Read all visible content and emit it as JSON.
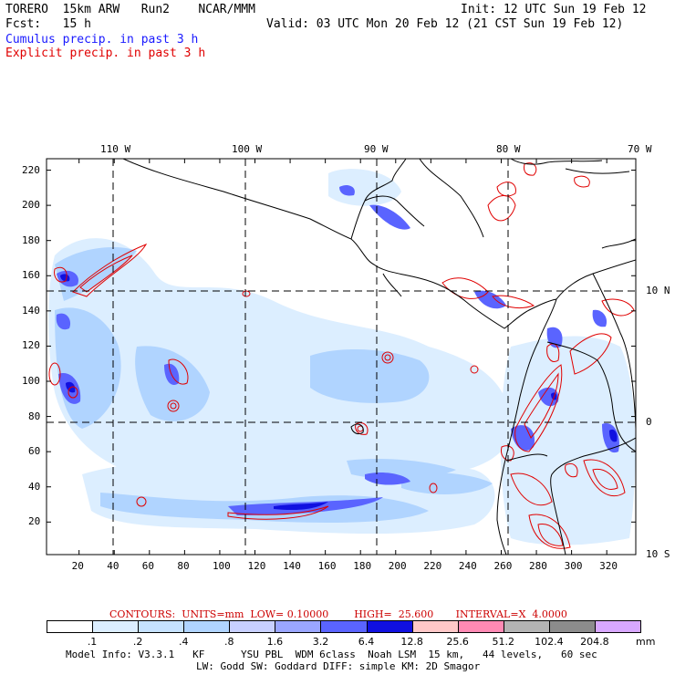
{
  "header": {
    "model": "TORERO  15km ARW   Run2    NCAR/MMM",
    "init": "Init: 12 UTC Sun 19 Feb 12",
    "fcst": "Fcst:   15 h",
    "valid": "Valid: 03 UTC Mon 20 Feb 12 (21 CST Sun 19 Feb 12)",
    "cumulus": "Cumulus precip. in past 3 h",
    "explicit": "Explicit precip. in past 3 h"
  },
  "colors": {
    "cumulus_text": "#1a1aff",
    "explicit_text": "#e00000",
    "contour": "#e00000",
    "coast": "#000000"
  },
  "axes": {
    "top_lon_labels": [
      "110 W",
      "100 W",
      "90 W",
      "80 W",
      "70 W"
    ],
    "right_lat_labels": [
      "10 N",
      "0",
      "10 S"
    ],
    "x_ticks": [
      "20",
      "40",
      "60",
      "80",
      "100",
      "120",
      "140",
      "160",
      "180",
      "200",
      "220",
      "240",
      "260",
      "280",
      "300",
      "320"
    ],
    "y_ticks": [
      "220",
      "200",
      "180",
      "160",
      "140",
      "120",
      "100",
      "80",
      "60",
      "40",
      "20"
    ]
  },
  "contours_label": {
    "text": "CONTOURS:  UNITS=mm  LOW= 0.10000        HIGH=  25.600       INTERVAL=X  4.0000"
  },
  "colorbar": {
    "labels": [
      ".1",
      ".2",
      ".4",
      ".8",
      "1.6",
      "3.2",
      "6.4",
      "12.8",
      "25.6",
      "51.2",
      "102.4",
      "204.8"
    ],
    "units": "mm",
    "colors": [
      "#ffffff",
      "#dceeff",
      "#c6e2ff",
      "#b0d4ff",
      "#c8d0ff",
      "#9aa6ff",
      "#5a64ff",
      "#1010e0",
      "#ffc8c8",
      "#ff8ab4",
      "#b4b4b4",
      "#8c8c8c",
      "#d8a8ff"
    ]
  },
  "footer": {
    "line1": "Model Info: V3.3.1   KF      YSU PBL  WDM 6class  Noah LSM  15 km,   44 levels,   60 sec",
    "line2": "LW: Godd SW: Goddard DIFF: simple KM: 2D Smagor"
  }
}
